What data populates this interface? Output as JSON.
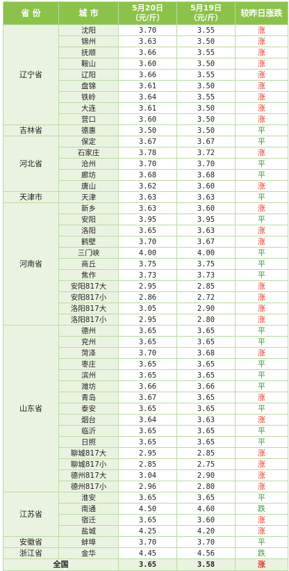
{
  "header": {
    "province": "省 份",
    "city": "城 市",
    "date1_line1": "5月20日",
    "date1_line2": "（元/斤）",
    "date2_line1": "5月19日",
    "date2_line2": "（元/斤）",
    "trend": "较昨日涨跌"
  },
  "groups": [
    {
      "province": "辽宁省",
      "rows": [
        {
          "city": "沈阳",
          "d20": "3.70",
          "d19": "3.55",
          "trend": "涨"
        },
        {
          "city": "锦州",
          "d20": "3.63",
          "d19": "3.50",
          "trend": "涨"
        },
        {
          "city": "抚顺",
          "d20": "3.66",
          "d19": "3.55",
          "trend": "涨"
        },
        {
          "city": "鞍山",
          "d20": "3.60",
          "d19": "3.50",
          "trend": "涨"
        },
        {
          "city": "辽阳",
          "d20": "3.66",
          "d19": "3.55",
          "trend": "涨"
        },
        {
          "city": "盘锦",
          "d20": "3.61",
          "d19": "3.50",
          "trend": "涨"
        },
        {
          "city": "铁岭",
          "d20": "3.64",
          "d19": "3.55",
          "trend": "涨"
        },
        {
          "city": "大连",
          "d20": "3.61",
          "d19": "3.50",
          "trend": "涨"
        },
        {
          "city": "营口",
          "d20": "3.60",
          "d19": "3.50",
          "trend": "涨"
        }
      ]
    },
    {
      "province": "吉林省",
      "rows": [
        {
          "city": "德惠",
          "d20": "3.50",
          "d19": "3.50",
          "trend": "平"
        }
      ]
    },
    {
      "province": "河北省",
      "rows": [
        {
          "city": "保定",
          "d20": "3.67",
          "d19": "3.67",
          "trend": "平"
        },
        {
          "city": "石家庄",
          "d20": "3.78",
          "d19": "3.72",
          "trend": "涨"
        },
        {
          "city": "沧州",
          "d20": "3.70",
          "d19": "3.70",
          "trend": "平"
        },
        {
          "city": "廊坊",
          "d20": "3.68",
          "d19": "3.68",
          "trend": "平"
        },
        {
          "city": "唐山",
          "d20": "3.62",
          "d19": "3.60",
          "trend": "涨"
        }
      ]
    },
    {
      "province": "天津市",
      "rows": [
        {
          "city": "天津",
          "d20": "3.63",
          "d19": "3.63",
          "trend": "平"
        }
      ]
    },
    {
      "province": "河南省",
      "rows": [
        {
          "city": "新乡",
          "d20": "3.63",
          "d19": "3.60",
          "trend": "涨"
        },
        {
          "city": "安阳",
          "d20": "3.95",
          "d19": "3.95",
          "trend": "平"
        },
        {
          "city": "洛阳",
          "d20": "3.65",
          "d19": "3.63",
          "trend": "涨"
        },
        {
          "city": "鹤壁",
          "d20": "3.70",
          "d19": "3.67",
          "trend": "涨"
        },
        {
          "city": "三门峡",
          "d20": "4.00",
          "d19": "4.00",
          "trend": "平"
        },
        {
          "city": "商丘",
          "d20": "3.75",
          "d19": "3.75",
          "trend": "平"
        },
        {
          "city": "焦作",
          "d20": "3.73",
          "d19": "3.73",
          "trend": "平"
        },
        {
          "city": "安阳817大",
          "d20": "2.95",
          "d19": "2.85",
          "trend": "涨"
        },
        {
          "city": "安阳817小",
          "d20": "2.86",
          "d19": "2.72",
          "trend": "涨"
        },
        {
          "city": "洛阳817大",
          "d20": "3.05",
          "d19": "2.90",
          "trend": "涨"
        },
        {
          "city": "洛阳817小",
          "d20": "2.95",
          "d19": "2.80",
          "trend": "涨"
        }
      ]
    },
    {
      "province": "山东省",
      "rows": [
        {
          "city": "德州",
          "d20": "3.65",
          "d19": "3.65",
          "trend": "平"
        },
        {
          "city": "兖州",
          "d20": "3.65",
          "d19": "3.65",
          "trend": "平"
        },
        {
          "city": "菏泽",
          "d20": "3.70",
          "d19": "3.68",
          "trend": "涨"
        },
        {
          "city": "枣庄",
          "d20": "3.65",
          "d19": "3.65",
          "trend": "平"
        },
        {
          "city": "滨州",
          "d20": "3.65",
          "d19": "3.65",
          "trend": "平"
        },
        {
          "city": "潍坊",
          "d20": "3.66",
          "d19": "3.66",
          "trend": "平"
        },
        {
          "city": "青岛",
          "d20": "3.67",
          "d19": "3.65",
          "trend": "涨"
        },
        {
          "city": "泰安",
          "d20": "3.65",
          "d19": "3.65",
          "trend": "平"
        },
        {
          "city": "烟台",
          "d20": "3.64",
          "d19": "3.63",
          "trend": "涨"
        },
        {
          "city": "临沂",
          "d20": "3.65",
          "d19": "3.65",
          "trend": "平"
        },
        {
          "city": "日照",
          "d20": "3.65",
          "d19": "3.65",
          "trend": "平"
        },
        {
          "city": "聊城817大",
          "d20": "2.95",
          "d19": "2.85",
          "trend": "涨"
        },
        {
          "city": "聊城817小",
          "d20": "2.85",
          "d19": "2.75",
          "trend": "涨"
        },
        {
          "city": "德州817大",
          "d20": "3.04",
          "d19": "2.90",
          "trend": "涨"
        },
        {
          "city": "德州817小",
          "d20": "2.96",
          "d19": "2.80",
          "trend": "涨"
        }
      ]
    },
    {
      "province": "江苏省",
      "rows": [
        {
          "city": "淮安",
          "d20": "3.65",
          "d19": "3.65",
          "trend": "平"
        },
        {
          "city": "南通",
          "d20": "4.50",
          "d19": "4.60",
          "trend": "跌"
        },
        {
          "city": "宿迁",
          "d20": "3.65",
          "d19": "3.60",
          "trend": "涨"
        },
        {
          "city": "盐城",
          "d20": "4.25",
          "d19": "4.20",
          "trend": "涨"
        }
      ]
    },
    {
      "province": "安徽省",
      "rows": [
        {
          "city": "蚌埠",
          "d20": "3.70",
          "d19": "3.70",
          "trend": "平"
        }
      ]
    },
    {
      "province": "浙江省",
      "rows": [
        {
          "city": "金华",
          "d20": "4.45",
          "d19": "4.56",
          "trend": "跌"
        }
      ]
    }
  ],
  "total": {
    "label": "全国",
    "d20": "3.65",
    "d19": "3.58",
    "trend": "涨"
  },
  "colors": {
    "header_bg": "#8bc34a",
    "up": "#e03a2a",
    "flat": "#3d9a3d",
    "down": "#3d9a3d",
    "row_tint": "#eaf3e0"
  }
}
